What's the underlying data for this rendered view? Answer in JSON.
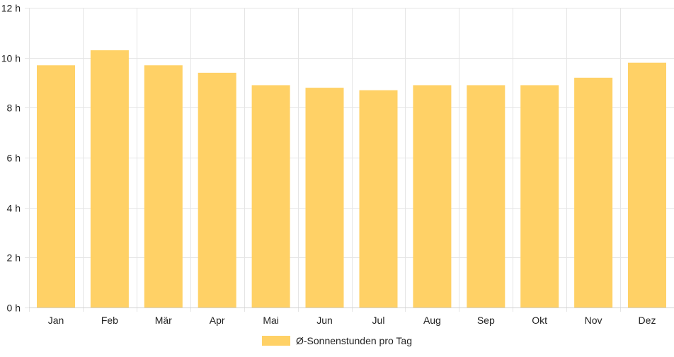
{
  "chart_data": {
    "type": "bar",
    "categories": [
      "Jan",
      "Feb",
      "Mär",
      "Apr",
      "Mai",
      "Jun",
      "Jul",
      "Aug",
      "Sep",
      "Okt",
      "Nov",
      "Dez"
    ],
    "series": [
      {
        "name": "Ø-Sonnenstunden pro Tag",
        "values": [
          9.7,
          10.3,
          9.7,
          9.4,
          8.9,
          8.8,
          8.7,
          8.9,
          8.9,
          8.9,
          9.2,
          9.8
        ],
        "color": "#ffd166"
      }
    ],
    "ylim": [
      0,
      12
    ],
    "y_ticks": [
      0,
      2,
      4,
      6,
      8,
      10,
      12
    ],
    "y_tick_suffix": " h",
    "grid": true,
    "legend_position": "bottom"
  }
}
